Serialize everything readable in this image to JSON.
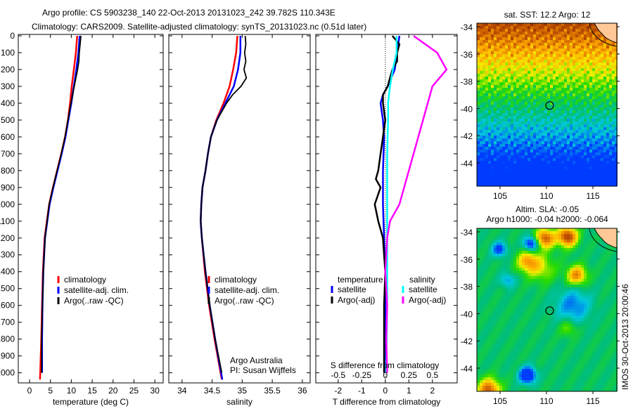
{
  "title": {
    "line1": "Argo profile: CS 5903238_140 22-Oct-2013 20131023_242 39.782S 110.343E",
    "line2": "Climatology: CARS2009. Satellite-adjusted climatology: synTS_20131023.nc (0.51d later)"
  },
  "colors": {
    "climatology": "#ff0000",
    "satellite": "#0000ff",
    "argo": "#000000",
    "sal_satellite": "#00ffff",
    "sal_argo": "#ff00ff"
  },
  "depth_axis": {
    "ticks": [
      0,
      100,
      200,
      300,
      400,
      500,
      600,
      700,
      800,
      900,
      1000,
      1100,
      1200,
      1300,
      1400,
      1500,
      1600,
      1700,
      1800,
      1900,
      2000
    ],
    "range": [
      0,
      2060
    ]
  },
  "chart_data": [
    {
      "type": "line",
      "xlabel": "temperature (deg C)",
      "ylabel": "depth",
      "xlim": [
        -2.7,
        32
      ],
      "xticks": [
        "0",
        "5",
        "10",
        "15",
        "20",
        "25",
        "30"
      ],
      "legend": [
        "climatology",
        "satellite-adj. clim.",
        "Argo(..raw -QC)"
      ],
      "series": [
        {
          "name": "climatology",
          "color": "climatology",
          "depth": [
            0,
            100,
            200,
            300,
            400,
            500,
            600,
            700,
            800,
            900,
            1000,
            1200,
            1400,
            1600,
            1800,
            2040
          ],
          "values": [
            11.4,
            11.1,
            10.6,
            10.1,
            9.7,
            9.2,
            8.5,
            7.6,
            6.6,
            5.6,
            4.7,
            3.6,
            3.2,
            3.0,
            2.8,
            2.5
          ]
        },
        {
          "name": "satellite-adj. clim.",
          "color": "satellite",
          "depth": [
            0,
            100,
            200,
            300,
            400,
            500,
            600,
            700,
            800,
            900,
            1000,
            1200,
            1400,
            1600,
            1800,
            2000
          ],
          "values": [
            12.0,
            11.7,
            11.2,
            10.6,
            10.0,
            9.3,
            8.6,
            7.7,
            6.7,
            5.7,
            4.8,
            3.7,
            3.3,
            3.1,
            3.0,
            3.0
          ]
        },
        {
          "name": "Argo(..raw -QC)",
          "color": "argo",
          "depth": [
            0,
            50,
            100,
            150,
            200,
            250,
            300,
            350,
            400,
            500,
            600,
            700,
            800,
            900,
            1000,
            1200,
            1400,
            1600,
            1800,
            2000
          ],
          "values": [
            12.3,
            12.1,
            11.9,
            11.8,
            11.5,
            11.1,
            10.7,
            10.3,
            9.9,
            9.2,
            8.5,
            7.6,
            6.6,
            5.6,
            4.7,
            3.7,
            3.3,
            3.1,
            2.9,
            2.9
          ]
        }
      ]
    },
    {
      "type": "line",
      "xlabel": "salinity",
      "xlim": [
        33.78,
        36.13
      ],
      "xticks": [
        "34",
        "34.5",
        "35",
        "35.5",
        "36"
      ],
      "legend": [
        "climatology",
        "satellite-adj. clim.",
        "Argo(..raw -QC)"
      ],
      "annotation": [
        "Argo Australia",
        "PI: Susan Wijffels"
      ],
      "series": [
        {
          "name": "climatology",
          "color": "climatology",
          "depth": [
            0,
            100,
            200,
            300,
            400,
            500,
            600,
            700,
            800,
            900,
            1000,
            1100,
            1200,
            1400,
            1600,
            1800,
            2000,
            2040
          ],
          "values": [
            34.92,
            34.9,
            34.85,
            34.79,
            34.69,
            34.57,
            34.48,
            34.43,
            34.39,
            34.34,
            34.32,
            34.31,
            34.33,
            34.38,
            34.45,
            34.54,
            34.64,
            34.66
          ]
        },
        {
          "name": "satellite-adj. clim.",
          "color": "satellite",
          "depth": [
            0,
            100,
            200,
            300,
            400,
            500,
            600,
            700,
            800,
            900,
            1000,
            1100,
            1200,
            1400,
            1600,
            1800,
            2000,
            2040
          ],
          "values": [
            34.97,
            34.97,
            34.93,
            34.86,
            34.72,
            34.58,
            34.48,
            34.43,
            34.39,
            34.34,
            34.32,
            34.31,
            34.33,
            34.39,
            34.46,
            34.55,
            34.65,
            34.67
          ]
        },
        {
          "name": "Argo(..raw -QC)",
          "color": "argo",
          "depth": [
            0,
            50,
            100,
            150,
            200,
            250,
            300,
            350,
            400,
            500,
            600,
            700,
            800,
            900,
            1000,
            1100,
            1200,
            1400,
            1600,
            1800,
            2000
          ],
          "values": [
            35.05,
            35.06,
            35.04,
            35.06,
            35.03,
            35.07,
            34.98,
            34.84,
            34.74,
            34.58,
            34.48,
            34.43,
            34.39,
            34.34,
            34.32,
            34.31,
            34.33,
            34.39,
            34.46,
            34.55,
            34.66
          ]
        }
      ]
    },
    {
      "type": "line",
      "xlabel": "T difference from climatology",
      "x2label": "S difference from climatology",
      "xlim": [
        -2.95,
        3.05
      ],
      "xticks": [
        "-2",
        "-1",
        "0",
        "1",
        "2"
      ],
      "x2ticks": [
        "-0.5",
        "-0.25",
        "0",
        "0.25",
        "0.5"
      ],
      "legend_titles": [
        "temperature",
        "salinity"
      ],
      "legend": [
        "satellite",
        "Argo(-adj)",
        "satellite",
        "Argo(-adj)"
      ],
      "series": [
        {
          "name": "T satellite",
          "color": "satellite",
          "depth": [
            0,
            100,
            200,
            300,
            350,
            400,
            500,
            600,
            800,
            1000,
            1200,
            1400,
            1600,
            1800,
            2000
          ],
          "values": [
            0.6,
            0.5,
            0.4,
            0.1,
            -0.1,
            -0.2,
            -0.1,
            -0.05,
            -0.1,
            -0.1,
            -0.05,
            0,
            0,
            0,
            -0.02
          ]
        },
        {
          "name": "T Argo(-adj)",
          "color": "argo",
          "depth": [
            0,
            50,
            100,
            150,
            200,
            250,
            300,
            350,
            400,
            500,
            600,
            700,
            800,
            850,
            900,
            1000,
            1100,
            1200,
            1300,
            1400,
            1600,
            1800,
            2000
          ],
          "values": [
            0.3,
            0.6,
            0.5,
            0.5,
            0.3,
            0.2,
            0.1,
            -0.1,
            -0.1,
            0.0,
            -0.1,
            -0.2,
            -0.3,
            -0.4,
            -0.2,
            -0.45,
            -0.3,
            -0.1,
            -0.05,
            0,
            -0.05,
            -0.05,
            -0.05
          ]
        },
        {
          "name": "S satellite",
          "color": "sal_satellite",
          "depth": [
            0,
            100,
            200,
            300,
            400,
            500,
            700,
            1000,
            1300,
            1600,
            2000
          ],
          "values": [
            0.12,
            0.12,
            0.08,
            0.05,
            0.03,
            0.03,
            0.02,
            0.02,
            0.02,
            0.02,
            0.01
          ]
        },
        {
          "name": "S Argo(-adj)",
          "color": "sal_argo",
          "depth": [
            0,
            100,
            200,
            300,
            400,
            500,
            600,
            700,
            800,
            900,
            1000,
            1100,
            1200,
            1400,
            1600,
            1800,
            2000
          ],
          "values": [
            0.3,
            0.55,
            0.65,
            0.5,
            0.45,
            0.4,
            0.35,
            0.3,
            0.25,
            0.2,
            0.15,
            0.05,
            0.02,
            0.0,
            0.02,
            0.01,
            0.02
          ]
        }
      ]
    }
  ],
  "maps": {
    "sst": {
      "title": "sat. SST: 12.2 Argo: 12",
      "lat_ticks": [
        "-34",
        "-36",
        "-38",
        "-40",
        "-42",
        "-44"
      ],
      "lon_ticks": [
        "105",
        "110",
        "115"
      ]
    },
    "sla": {
      "title1": "Altim. SLA: -0.05",
      "title2": "Argo h1000: -0.04 h2000: -0.064",
      "lat_ticks": [
        "-34",
        "-36",
        "-38",
        "-40",
        "-42",
        "-44"
      ],
      "lon_ticks": [
        "105",
        "110",
        "115"
      ]
    },
    "argo_position": {
      "lon": 110.343,
      "lat": -39.782
    }
  },
  "footer": {
    "stamp": "IMOS 30-Oct-2013 20:00:46"
  }
}
